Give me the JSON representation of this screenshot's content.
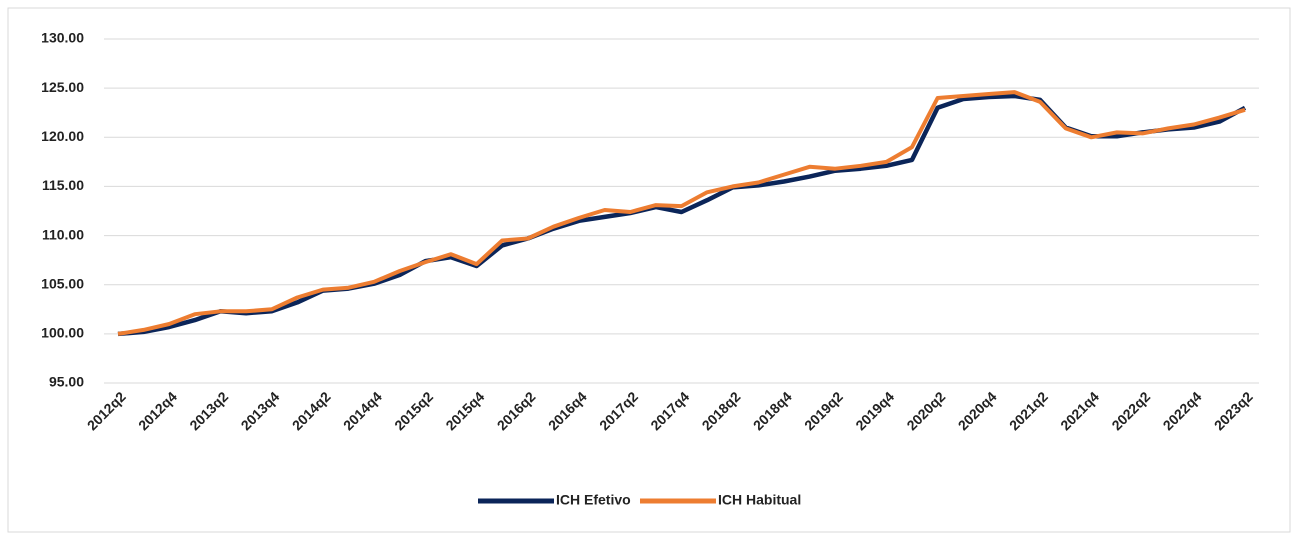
{
  "chart_data": {
    "type": "line",
    "categories": [
      "2012q2",
      null,
      "2012q4",
      null,
      "2013q2",
      null,
      "2013q4",
      null,
      "2014q2",
      null,
      "2014q4",
      null,
      "2015q2",
      null,
      "2015q4",
      null,
      "2016q2",
      null,
      "2016q4",
      null,
      "2017q2",
      null,
      "2017q4",
      null,
      "2018q2",
      null,
      "2018q4",
      null,
      "2019q2",
      null,
      "2019q4",
      null,
      "2020q2",
      null,
      "2020q4",
      null,
      "2021q2",
      null,
      "2021q4",
      null,
      "2022q2",
      null,
      "2022q4",
      null,
      "2023q2"
    ],
    "series": [
      {
        "name": "ICH Efetivo",
        "color": "#0b2559",
        "values": [
          100.0,
          100.2,
          100.7,
          101.4,
          102.3,
          102.1,
          102.3,
          103.2,
          104.4,
          104.6,
          105.1,
          106.0,
          107.4,
          107.8,
          106.9,
          109.0,
          109.7,
          110.7,
          111.5,
          111.9,
          112.3,
          112.9,
          112.4,
          113.6,
          114.9,
          115.1,
          115.5,
          116.0,
          116.6,
          116.8,
          117.1,
          117.7,
          123.0,
          123.9,
          124.1,
          124.2,
          123.8,
          121.0,
          120.1,
          120.1,
          120.5,
          120.8,
          121.0,
          121.6,
          123.0
        ]
      },
      {
        "name": "ICH Habitual",
        "color": "#ed7d31",
        "values": [
          100.0,
          100.4,
          101.0,
          102.0,
          102.3,
          102.3,
          102.5,
          103.7,
          104.5,
          104.7,
          105.3,
          106.4,
          107.3,
          108.1,
          107.1,
          109.5,
          109.7,
          110.9,
          111.8,
          112.6,
          112.4,
          113.1,
          113.0,
          114.4,
          115.0,
          115.4,
          116.2,
          117.0,
          116.8,
          117.1,
          117.5,
          119.0,
          124.0,
          124.2,
          124.4,
          124.6,
          123.6,
          120.9,
          120.0,
          120.5,
          120.4,
          120.9,
          121.3,
          122.0,
          122.8
        ]
      }
    ],
    "ylim": [
      95,
      130
    ],
    "yticks": [
      {
        "value": 95,
        "label": "95.00"
      },
      {
        "value": 100,
        "label": "100.00"
      },
      {
        "value": 105,
        "label": "105.00"
      },
      {
        "value": 110,
        "label": "110.00"
      },
      {
        "value": 115,
        "label": "115.00"
      },
      {
        "value": 120,
        "label": "120.00"
      },
      {
        "value": 125,
        "label": "125.00"
      },
      {
        "value": 130,
        "label": "130.00"
      }
    ],
    "grid": true,
    "legend": "bottom"
  }
}
